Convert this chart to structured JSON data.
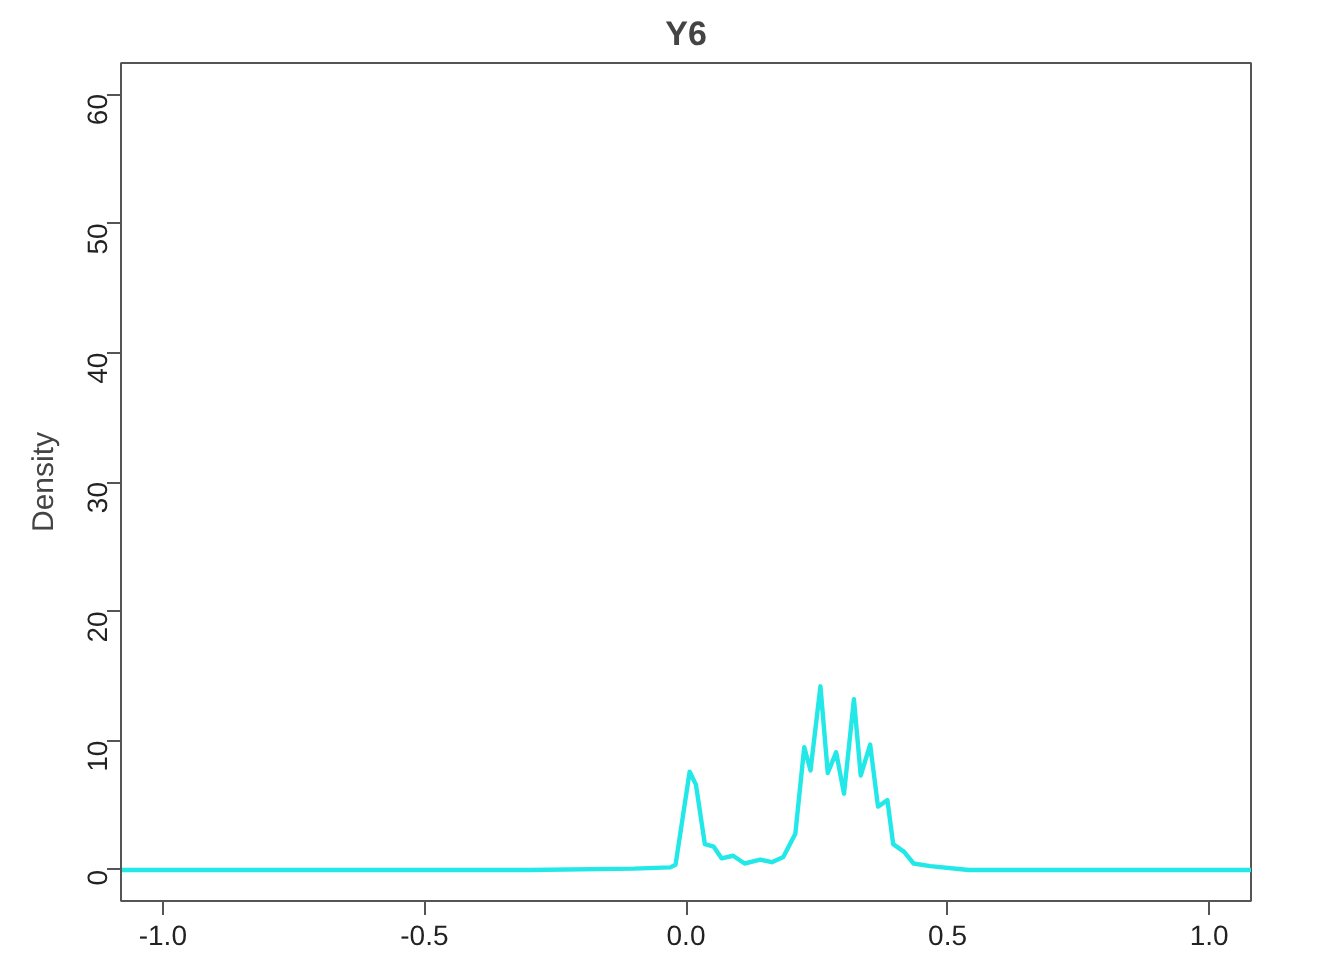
{
  "chart_data": {
    "type": "line",
    "title": "Y6",
    "ylabel": "Density",
    "x": [
      -1.08,
      -0.5,
      -0.3,
      -0.1,
      -0.03,
      -0.02,
      0.007,
      0.019,
      0.036,
      0.053,
      0.068,
      0.09,
      0.112,
      0.142,
      0.164,
      0.186,
      0.209,
      0.226,
      0.238,
      0.257,
      0.271,
      0.287,
      0.302,
      0.321,
      0.334,
      0.352,
      0.367,
      0.385,
      0.396,
      0.417,
      0.435,
      0.467,
      0.54,
      0.8,
      1.08
    ],
    "series": [
      {
        "color": "#22e8e8",
        "values": [
          0,
          0,
          0,
          0.1,
          0.2,
          0.4,
          7.6,
          6.6,
          2.0,
          1.8,
          0.9,
          1.1,
          0.5,
          0.8,
          0.6,
          1.0,
          2.8,
          9.5,
          7.7,
          14.2,
          7.5,
          9.1,
          5.9,
          13.2,
          7.3,
          9.7,
          4.9,
          5.4,
          2.0,
          1.4,
          0.5,
          0.3,
          0,
          0,
          0
        ]
      }
    ],
    "xlim": [
      -1.08,
      1.08
    ],
    "ylim": [
      -2.4,
      62.4
    ],
    "xticks": [
      {
        "value": -1,
        "label": "-1.0"
      },
      {
        "value": -0.5,
        "label": "-0.5"
      },
      {
        "value": 0,
        "label": "0.0"
      },
      {
        "value": 0.5,
        "label": "0.5"
      },
      {
        "value": 1,
        "label": "1.0"
      }
    ],
    "yticks": [
      0,
      10,
      20,
      30,
      40,
      50,
      60
    ],
    "grid": false,
    "line_style": "solid"
  }
}
